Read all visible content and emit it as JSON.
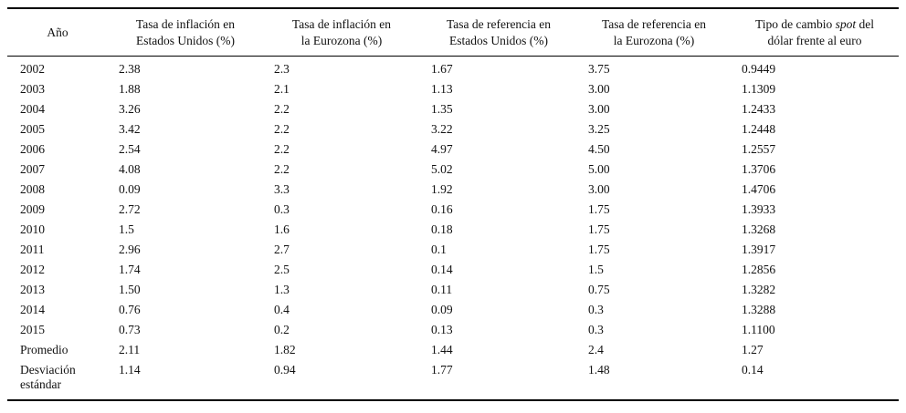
{
  "table": {
    "columns": [
      {
        "id": "year",
        "lines": [
          [
            "Año"
          ]
        ]
      },
      {
        "id": "us-inflation",
        "lines": [
          [
            "Tasa de inflación en"
          ],
          [
            "Estados Unidos (%)"
          ]
        ]
      },
      {
        "id": "eurozone-inflation",
        "lines": [
          [
            "Tasa de inflación en"
          ],
          [
            "la Eurozona (%)"
          ]
        ]
      },
      {
        "id": "us-reference-rate",
        "lines": [
          [
            "Tasa de referencia en"
          ],
          [
            "Estados Unidos (%)"
          ]
        ]
      },
      {
        "id": "eurozone-reference-rate",
        "lines": [
          [
            "Tasa de referencia en"
          ],
          [
            "la Eurozona (%)"
          ]
        ]
      },
      {
        "id": "spot-exchange-rate",
        "lines": [
          [
            "Tipo de cambio ",
            {
              "i": "spot"
            },
            " del"
          ],
          [
            "dólar frente al euro"
          ]
        ]
      }
    ],
    "rows": [
      {
        "label": "2002",
        "values": [
          "2.38",
          "2.3",
          "1.67",
          "3.75",
          "0.9449"
        ]
      },
      {
        "label": "2003",
        "values": [
          "1.88",
          "2.1",
          "1.13",
          "3.00",
          "1.1309"
        ]
      },
      {
        "label": "2004",
        "values": [
          "3.26",
          "2.2",
          "1.35",
          "3.00",
          "1.2433"
        ]
      },
      {
        "label": "2005",
        "values": [
          "3.42",
          "2.2",
          "3.22",
          "3.25",
          "1.2448"
        ]
      },
      {
        "label": "2006",
        "values": [
          "2.54",
          "2.2",
          "4.97",
          "4.50",
          "1.2557"
        ]
      },
      {
        "label": "2007",
        "values": [
          "4.08",
          "2.2",
          "5.02",
          "5.00",
          "1.3706"
        ]
      },
      {
        "label": "2008",
        "values": [
          "0.09",
          "3.3",
          "1.92",
          "3.00",
          "1.4706"
        ]
      },
      {
        "label": "2009",
        "values": [
          "2.72",
          "0.3",
          "0.16",
          "1.75",
          "1.3933"
        ]
      },
      {
        "label": "2010",
        "values": [
          "1.5",
          "1.6",
          "0.18",
          "1.75",
          "1.3268"
        ]
      },
      {
        "label": "2011",
        "values": [
          "2.96",
          "2.7",
          "0.1",
          "1.75",
          "1.3917"
        ]
      },
      {
        "label": "2012",
        "values": [
          "1.74",
          "2.5",
          "0.14",
          "1.5",
          "1.2856"
        ]
      },
      {
        "label": "2013",
        "values": [
          "1.50",
          "1.3",
          "0.11",
          "0.75",
          "1.3282"
        ]
      },
      {
        "label": "2014",
        "values": [
          "0.76",
          "0.4",
          "0.09",
          "0.3",
          "1.3288"
        ]
      },
      {
        "label": "2015",
        "values": [
          "0.73",
          "0.2",
          "0.13",
          "0.3",
          "1.1100"
        ]
      },
      {
        "label": "Promedio",
        "values": [
          "2.11",
          "1.82",
          "1.44",
          "2.4",
          "1.27"
        ]
      },
      {
        "label": "Desviación estándar",
        "values": [
          "1.14",
          "0.94",
          "1.77",
          "1.48",
          "0.14"
        ]
      }
    ]
  }
}
